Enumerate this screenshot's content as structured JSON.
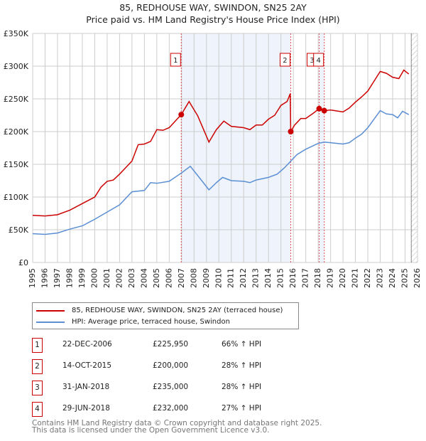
{
  "chart_data": {
    "type": "line",
    "title": "85, REDHOUSE WAY, SWINDON, SN25 2AY",
    "subtitle": "Price paid vs. HM Land Registry's House Price Index (HPI)",
    "xlim": [
      1995,
      2026
    ],
    "ylim": [
      0,
      350000
    ],
    "x_ticks": [
      "1995",
      "1996",
      "1997",
      "1998",
      "1999",
      "2000",
      "2001",
      "2002",
      "2003",
      "2004",
      "2005",
      "2006",
      "2007",
      "2008",
      "2009",
      "2010",
      "2011",
      "2012",
      "2013",
      "2014",
      "2015",
      "2016",
      "2017",
      "2018",
      "2019",
      "2020",
      "2021",
      "2022",
      "2023",
      "2024",
      "2025",
      "2026"
    ],
    "y_ticks": [
      {
        "v": 0,
        "label": "£0"
      },
      {
        "v": 50000,
        "label": "£50K"
      },
      {
        "v": 100000,
        "label": "£100K"
      },
      {
        "v": 150000,
        "label": "£150K"
      },
      {
        "v": 200000,
        "label": "£200K"
      },
      {
        "v": 250000,
        "label": "£250K"
      },
      {
        "v": 300000,
        "label": "£300K"
      },
      {
        "v": 350000,
        "label": "£350K"
      }
    ],
    "series": [
      {
        "name": "85, REDHOUSE WAY, SWINDON, SN25 2AY (terraced house)",
        "color": "#cc0000",
        "points": [
          [
            1995,
            72
          ],
          [
            1996,
            71
          ],
          [
            1997,
            73
          ],
          [
            1998,
            80
          ],
          [
            1999,
            90
          ],
          [
            2000,
            100
          ],
          [
            2000.5,
            115
          ],
          [
            2001,
            124
          ],
          [
            2001.5,
            126
          ],
          [
            2002,
            135
          ],
          [
            2002.5,
            145
          ],
          [
            2003,
            155
          ],
          [
            2003.5,
            180
          ],
          [
            2004,
            181
          ],
          [
            2004.5,
            185
          ],
          [
            2005,
            203
          ],
          [
            2005.5,
            202
          ],
          [
            2006,
            206
          ],
          [
            2006.97,
            225.95
          ],
          [
            2007.6,
            246
          ],
          [
            2008.3,
            224
          ],
          [
            2009.2,
            184
          ],
          [
            2009.8,
            203
          ],
          [
            2010.4,
            216
          ],
          [
            2011,
            208
          ],
          [
            2012,
            206
          ],
          [
            2012.5,
            203
          ],
          [
            2013,
            210
          ],
          [
            2013.5,
            210
          ],
          [
            2014,
            219
          ],
          [
            2014.5,
            225
          ],
          [
            2015,
            240
          ],
          [
            2015.5,
            246
          ],
          [
            2015.75,
            258
          ],
          [
            2015.79,
            200
          ],
          [
            2016.1,
            210
          ],
          [
            2016.6,
            220
          ],
          [
            2017,
            220
          ],
          [
            2017.6,
            228
          ],
          [
            2018.08,
            235
          ],
          [
            2018.49,
            232
          ],
          [
            2019,
            233
          ],
          [
            2020,
            230
          ],
          [
            2020.5,
            236
          ],
          [
            2021,
            245
          ],
          [
            2021.5,
            253
          ],
          [
            2022,
            262
          ],
          [
            2022.5,
            277
          ],
          [
            2023,
            292
          ],
          [
            2023.5,
            289
          ],
          [
            2024,
            283
          ],
          [
            2024.5,
            281
          ],
          [
            2024.9,
            294
          ],
          [
            2025.3,
            288
          ]
        ]
      },
      {
        "name": "HPI: Average price, terraced house, Swindon",
        "color": "#5b8fd4",
        "points": [
          [
            1995,
            44
          ],
          [
            1996,
            43
          ],
          [
            1997,
            45
          ],
          [
            1998,
            51
          ],
          [
            1999,
            56
          ],
          [
            2000,
            66
          ],
          [
            2001,
            77
          ],
          [
            2002,
            88
          ],
          [
            2003,
            108
          ],
          [
            2004,
            110
          ],
          [
            2004.5,
            122
          ],
          [
            2005,
            121
          ],
          [
            2006,
            124
          ],
          [
            2007,
            137
          ],
          [
            2007.7,
            147
          ],
          [
            2008.5,
            128
          ],
          [
            2009.2,
            111
          ],
          [
            2009.8,
            122
          ],
          [
            2010.3,
            130
          ],
          [
            2011,
            125
          ],
          [
            2012,
            124
          ],
          [
            2012.5,
            122
          ],
          [
            2013,
            126
          ],
          [
            2014,
            130
          ],
          [
            2014.7,
            135
          ],
          [
            2015.3,
            145
          ],
          [
            2015.8,
            155
          ],
          [
            2016.3,
            165
          ],
          [
            2017,
            173
          ],
          [
            2018,
            182
          ],
          [
            2018.5,
            184
          ],
          [
            2019,
            183
          ],
          [
            2020,
            181
          ],
          [
            2020.5,
            183
          ],
          [
            2021,
            190
          ],
          [
            2021.5,
            196
          ],
          [
            2022,
            206
          ],
          [
            2022.5,
            219
          ],
          [
            2023,
            232
          ],
          [
            2023.5,
            227
          ],
          [
            2024,
            226
          ],
          [
            2024.4,
            221
          ],
          [
            2024.8,
            231
          ],
          [
            2025.3,
            226
          ]
        ]
      }
    ],
    "y_unit": "thousands GBP in points",
    "sales": [
      {
        "label": "1",
        "x": 2006.97,
        "y": 225.95
      },
      {
        "label": "2",
        "x": 2015.79,
        "y": 200
      },
      {
        "label": "3",
        "x": 2018.08,
        "y": 235
      },
      {
        "label": "4",
        "x": 2018.49,
        "y": 232
      }
    ],
    "forecast_from": 2025.5
  },
  "legend": {
    "red": "85, REDHOUSE WAY, SWINDON, SN25 2AY (terraced house)",
    "blue": "HPI: Average price, terraced house, Swindon"
  },
  "table": [
    {
      "n": "1",
      "date": "22-DEC-2006",
      "price": "£225,950",
      "hpi": "66% ↑ HPI"
    },
    {
      "n": "2",
      "date": "14-OCT-2015",
      "price": "£200,000",
      "hpi": "28% ↑ HPI"
    },
    {
      "n": "3",
      "date": "31-JAN-2018",
      "price": "£235,000",
      "hpi": "28% ↑ HPI"
    },
    {
      "n": "4",
      "date": "29-JUN-2018",
      "price": "£232,000",
      "hpi": "27% ↑ HPI"
    }
  ],
  "footer": [
    "Contains HM Land Registry data © Crown copyright and database right 2025.",
    "This data is licensed under the Open Government Licence v3.0."
  ]
}
